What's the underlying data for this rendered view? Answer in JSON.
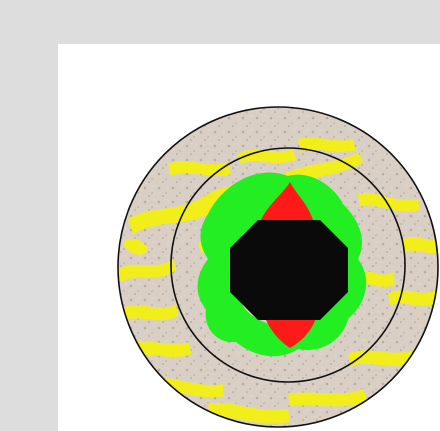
{
  "colors": {
    "background": "#dddddd",
    "panel": "#ffffff",
    "tissue": "#d8cfc6",
    "trabecular_bone": "#f2ee1c",
    "green_region": "#22ee22",
    "red_region": "#ff1a1a",
    "central_void": "#0a0a0a",
    "ring_outline": "#111111"
  },
  "image": {
    "subject": "micrograph-overlay",
    "rings": [
      "outer-ring",
      "inner-ring"
    ]
  }
}
